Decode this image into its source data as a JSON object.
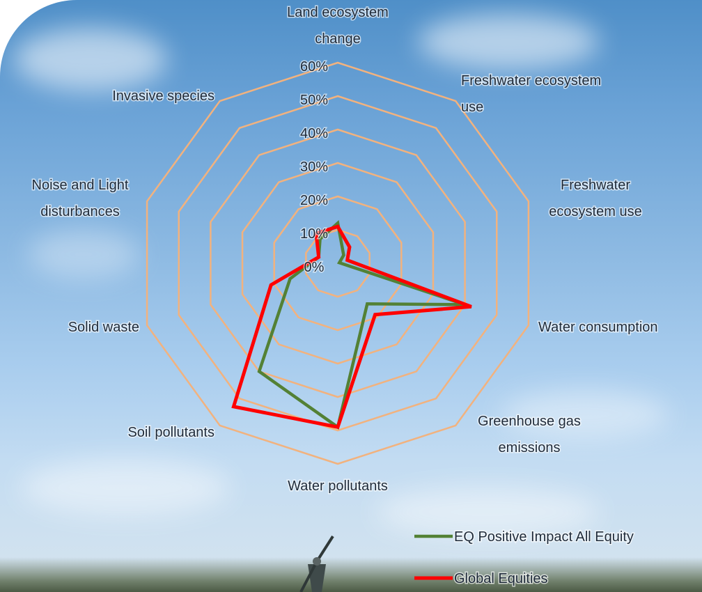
{
  "chart_data": {
    "type": "radar",
    "axes": [
      "Land ecosystem change",
      "Freshwater ecosystem use",
      "Freshwater ecosystem use",
      "Water consumption",
      "Greenhouse gas emissions",
      "Water pollutants",
      "Soil pollutants",
      "Solid waste",
      "Noise and Light disturbances",
      "Invasive species"
    ],
    "axis_label_lines": [
      [
        "Land ecosystem",
        "change"
      ],
      [
        "Freshwater ecosystem",
        "use"
      ],
      [
        "Freshwater",
        "ecosystem use"
      ],
      [
        "Water consumption"
      ],
      [
        "Greenhouse gas",
        "emissions"
      ],
      [
        "Water pollutants"
      ],
      [
        "Soil pollutants"
      ],
      [
        "Solid waste"
      ],
      [
        "Noise and Light",
        "disturbances"
      ],
      [
        "Invasive species"
      ]
    ],
    "ticks": [
      "0%",
      "10%",
      "20%",
      "30%",
      "40%",
      "50%",
      "60%"
    ],
    "rlim": [
      0,
      60
    ],
    "grid_color": "#f2b27e",
    "series": [
      {
        "name": "EQ Positive Impact All Equity",
        "color": "#538135",
        "values": [
          12,
          3,
          0.5,
          40,
          15,
          49,
          40,
          15,
          6,
          9
        ]
      },
      {
        "name": "Global Equities",
        "color": "#ff0000",
        "values": [
          11,
          6,
          3,
          42,
          19,
          49,
          53,
          21,
          6,
          11
        ]
      }
    ],
    "legend_position": "bottom-right"
  }
}
